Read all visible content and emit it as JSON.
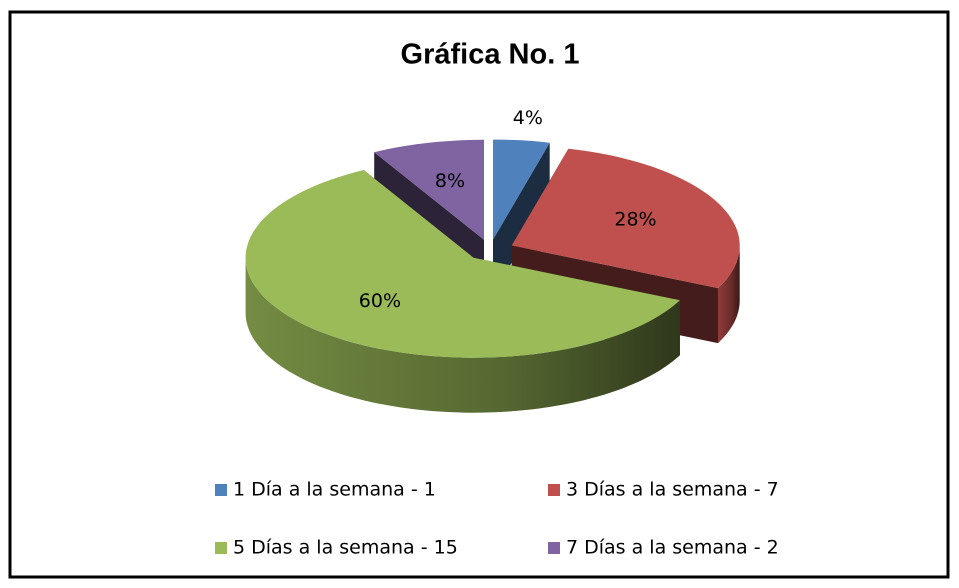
{
  "chart_data": {
    "type": "pie",
    "title": "Gráfica No. 1",
    "categories": [
      "1 Día a la semana - 1",
      "3 Días a la semana - 7",
      "5 Días a la semana - 15",
      "7 Días a la semana - 2"
    ],
    "values": [
      4,
      28,
      60,
      8
    ],
    "value_labels": [
      "4%",
      "28%",
      "60%",
      "8%"
    ],
    "colors": [
      "#4f81bd",
      "#c0504d",
      "#9bbb59",
      "#8064a2"
    ],
    "legend": "bottom"
  }
}
